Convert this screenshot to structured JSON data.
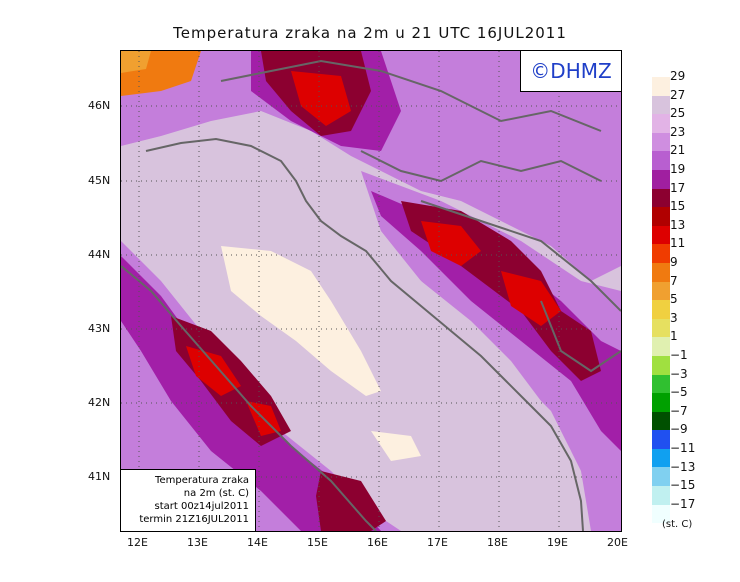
{
  "title": "Temperatura zraka na 2m u 21 UTC 16JUL2011",
  "logo": "©DHMZ",
  "info_box": {
    "line1": "Temperatura zraka",
    "line2": "na 2m (st. C)",
    "line3": "start 00z14jul2011",
    "line4": "termin 21Z16JUL2011"
  },
  "lat_labels": [
    "46N",
    "45N",
    "44N",
    "43N",
    "42N",
    "41N"
  ],
  "lon_labels": [
    "12E",
    "13E",
    "14E",
    "15E",
    "16E",
    "17E",
    "18E",
    "19E",
    "20E"
  ],
  "legend": {
    "unit": "(st. C)",
    "labels": [
      "29",
      "27",
      "25",
      "23",
      "21",
      "19",
      "17",
      "15",
      "13",
      "11",
      "9",
      "7",
      "5",
      "3",
      "1",
      "−1",
      "−3",
      "−5",
      "−7",
      "−9",
      "−11",
      "−13",
      "−15",
      "−17"
    ],
    "colors": [
      "#fdf0e0",
      "#d8c3dd",
      "#e2b3e6",
      "#cf8ee0",
      "#b85fd0",
      "#a01fa0",
      "#8c0030",
      "#b00000",
      "#dd0000",
      "#f03c00",
      "#f07a10",
      "#f0a030",
      "#f0d040",
      "#e6e060",
      "#e0f0b0",
      "#a0e040",
      "#30c030",
      "#00a000",
      "#005000",
      "#2050f0",
      "#10a0f0",
      "#80d0f0",
      "#c0f0f0",
      "#f0ffff"
    ]
  }
}
